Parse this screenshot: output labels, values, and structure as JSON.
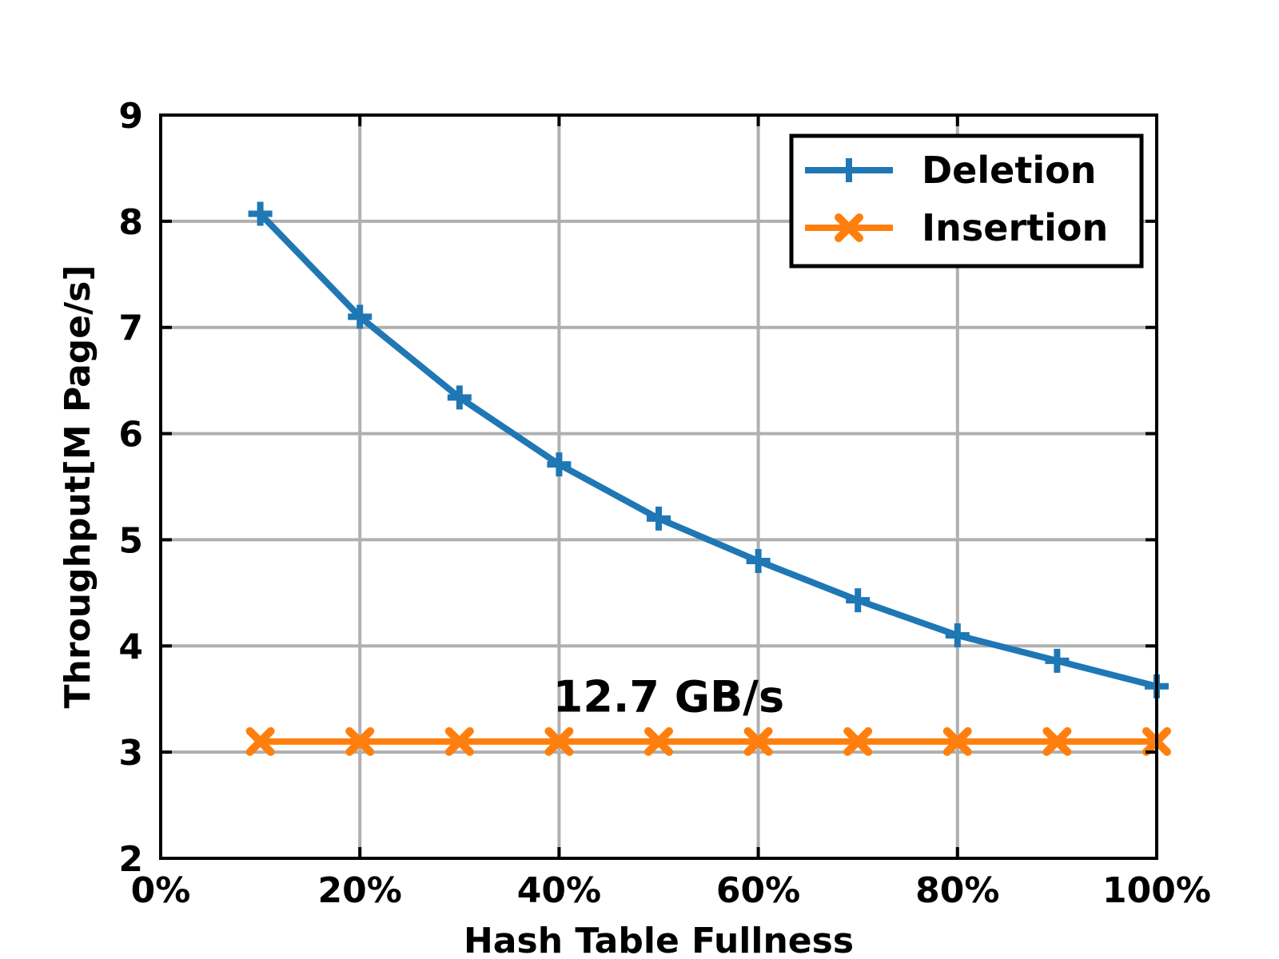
{
  "chart_data": {
    "type": "line",
    "xlabel": "Hash Table Fullness",
    "ylabel": "Throughput[M Page/s]",
    "xlim": [
      0,
      100
    ],
    "ylim": [
      2,
      9
    ],
    "xticks": [
      0,
      20,
      40,
      60,
      80,
      100
    ],
    "xtick_labels": [
      "0%",
      "20%",
      "40%",
      "60%",
      "80%",
      "100%"
    ],
    "yticks": [
      2,
      3,
      4,
      5,
      6,
      7,
      8,
      9
    ],
    "ytick_labels": [
      "2",
      "3",
      "4",
      "5",
      "6",
      "7",
      "8",
      "9"
    ],
    "x": [
      10,
      20,
      30,
      40,
      50,
      60,
      70,
      80,
      90,
      100
    ],
    "series": [
      {
        "name": "Deletion",
        "color": "#1f77b4",
        "marker": "plus",
        "values": [
          8.07,
          7.1,
          6.34,
          5.71,
          5.2,
          4.8,
          4.43,
          4.1,
          3.86,
          3.62
        ]
      },
      {
        "name": "Insertion",
        "color": "#ff7f0e",
        "marker": "x",
        "values": [
          3.1,
          3.1,
          3.1,
          3.1,
          3.1,
          3.1,
          3.1,
          3.1,
          3.1,
          3.1
        ]
      }
    ],
    "annotations": [
      {
        "text": "12.7 GB/s",
        "x": 51,
        "y": 3.38
      }
    ],
    "grid": true,
    "legend_position": "top-right"
  }
}
